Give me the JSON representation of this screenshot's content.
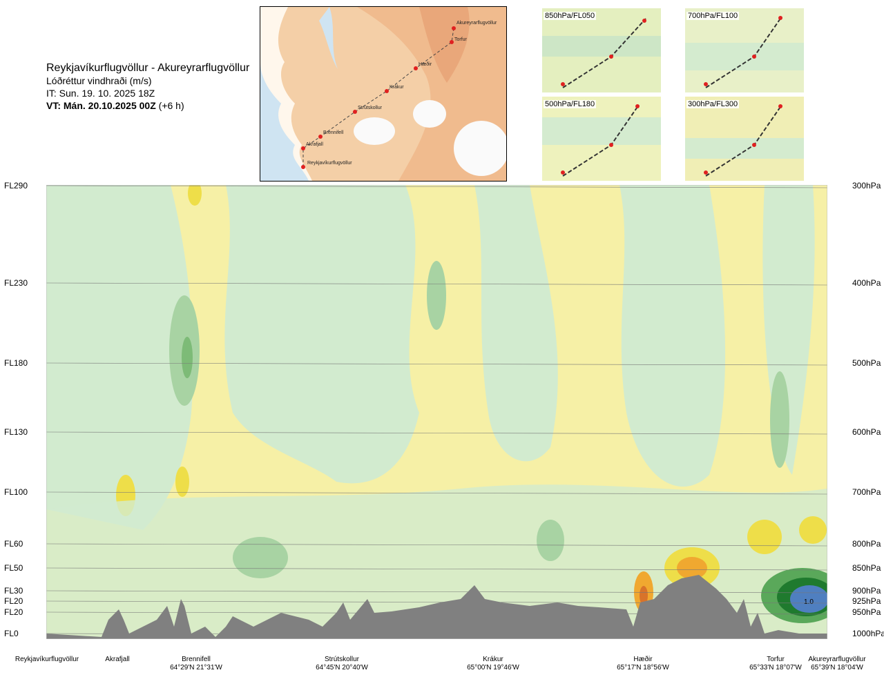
{
  "header": {
    "title": "Reykjavíkurflugvöllur - Akureyrarflugvöllur",
    "subtitle": "Lóðréttur vindhraði (m/s)",
    "init_time": "IT: Sun. 19. 10. 2025 18Z",
    "valid_time_bold": "VT: Mán. 20.10.2025 00Z",
    "valid_time_offset": "(+6 h)"
  },
  "map": {
    "route_points": [
      {
        "name": "Akureyrarflugvöllur"
      },
      {
        "name": "Torfur"
      },
      {
        "name": "Hæðir"
      },
      {
        "name": "Krákur"
      },
      {
        "name": "Strútskollur"
      },
      {
        "name": "Brennifell"
      },
      {
        "name": "Akrafjall"
      },
      {
        "name": "Reykjavíkurflugvöllur"
      }
    ]
  },
  "thumbnails": [
    {
      "label": "850hPa/FL050"
    },
    {
      "label": "700hPa/FL100"
    },
    {
      "label": "500hPa/FL180"
    },
    {
      "label": "300hPa/FL300"
    }
  ],
  "levels": [
    {
      "fl": "FL290",
      "hpa": "300hPa"
    },
    {
      "fl": "FL230",
      "hpa": "400hPa"
    },
    {
      "fl": "FL180",
      "hpa": "500hPa"
    },
    {
      "fl": "FL130",
      "hpa": "600hPa"
    },
    {
      "fl": "FL100",
      "hpa": "700hPa"
    },
    {
      "fl": "FL60",
      "hpa": "800hPa"
    },
    {
      "fl": "FL50",
      "hpa": "850hPa"
    },
    {
      "fl": "FL30",
      "hpa": "900hPa"
    },
    {
      "fl": "FL20",
      "hpa": "925hPa"
    },
    {
      "fl": "FL20",
      "hpa": "950hPa"
    },
    {
      "fl": "FL0",
      "hpa": "1000hPa"
    }
  ],
  "stations": [
    {
      "name": "Reykjavíkurflugvöllur",
      "coord": ""
    },
    {
      "name": "Akrafjall",
      "coord": ""
    },
    {
      "name": "Brennifell",
      "coord": "64°29'N 21°31'W"
    },
    {
      "name": "Strútskollur",
      "coord": "64°45'N 20°40'W"
    },
    {
      "name": "Krákur",
      "coord": "65°00'N 19°46'W"
    },
    {
      "name": "Hæðir",
      "coord": "65°17'N 18°56'W"
    },
    {
      "name": "Torfur",
      "coord": "65°33'N 18°07'W"
    },
    {
      "name": "Akureyrarflugvöllur",
      "coord": "65°39'N 18°04'W"
    }
  ],
  "colors": {
    "terrain": "#808080",
    "sea": "#cfe4f2",
    "land": "#f3c79b",
    "route": "#e02020",
    "green_light": "#d2ebcf",
    "green_mid": "#a8d3a3",
    "green_dark": "#5aa85a",
    "green_deep": "#1f7a2e",
    "yellow_light": "#f6f0a6",
    "yellow_mid": "#eede49",
    "orange": "#f0a830",
    "orange_dark": "#d8732a",
    "blue_core": "#4f7fc0"
  },
  "chart_data": {
    "type": "heatmap",
    "title": "Lóðréttur vindhraði (m/s)",
    "x_stations": [
      "Reykjavíkurflugvöllur",
      "Akrafjall",
      "Brennifell",
      "Strútskollur",
      "Krákur",
      "Hæðir",
      "Torfur",
      "Akureyrarflugvöllur"
    ],
    "y_levels_hpa": [
      1000,
      950,
      925,
      900,
      850,
      800,
      700,
      600,
      500,
      400,
      300
    ],
    "annotations": [
      "1.0"
    ],
    "legend": "none"
  }
}
